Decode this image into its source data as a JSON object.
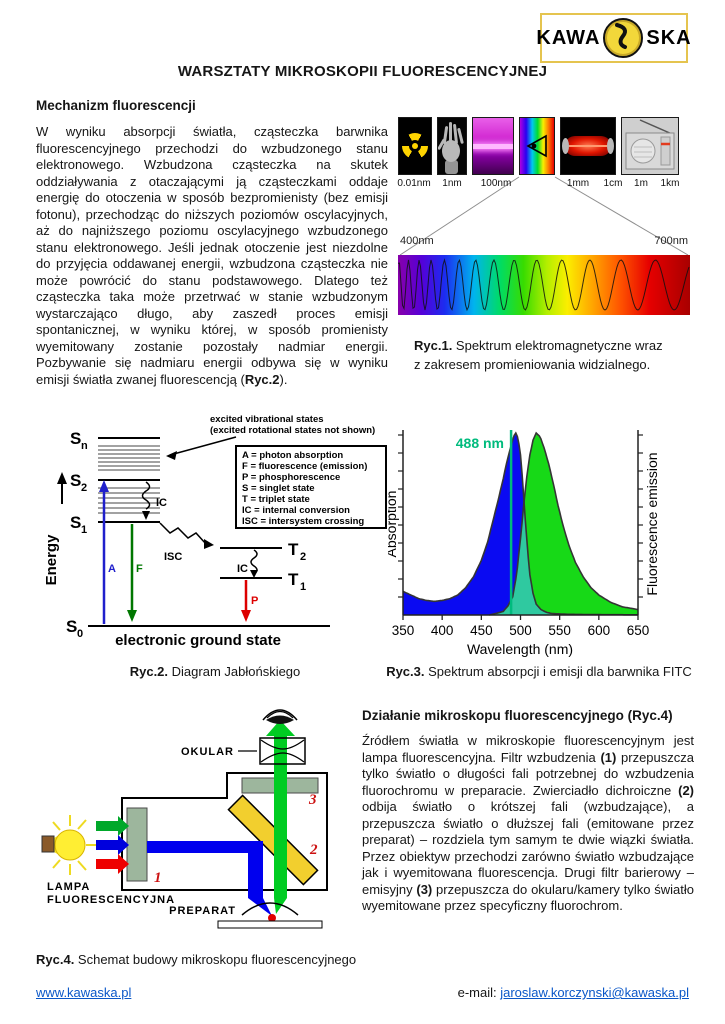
{
  "page_title": "WARSZTATY MIKROSKOPII FLUORESCENCYJNEJ",
  "logo": {
    "word_left": "KAWA",
    "word_right": "SKA"
  },
  "mechanizm": {
    "heading": "Mechanizm fluorescencji",
    "p1": "W wyniku absorpcji światła, cząsteczka barwnika fluorescencyjnego przechodzi do wzbudzonego stanu elektronowego. Wzbudzona cząsteczka na skutek oddziaływania z otaczającymi ją cząsteczkami oddaje energię do otoczenia w sposób bezpromienisty (bez emisji fotonu), przechodząc do niższych poziomów oscylacyjnych, aż do najniższego poziomu oscylacyjnego wzbudzonego stanu elektronowego. Jeśli jednak otoczenie jest niezdolne do przyjęcia oddawanej energii, wzbudzona cząsteczka nie może powrócić do stanu podstawowego. Dlatego też cząsteczka taka może przetrwać w stanie wzbudzonym wystarczająco długo, aby zaszedł proces emisji spontanicznej, w wyniku której, w sposób promienisty wyemitowany zostanie pozostały nadmiar energii. Pozbywanie się nadmiaru energii odbywa się w wyniku emisji światła zwanej fluorescencją (",
    "p1_bold": "Ryc.2",
    "p1_end": ")."
  },
  "ryc1": {
    "scale_labels": [
      "0.01nm",
      "1nm",
      "100nm",
      "1mm",
      "1cm",
      "1m",
      "1km"
    ],
    "scale_label_centers": [
      16,
      54,
      98,
      180,
      215,
      243,
      272
    ],
    "range_left": "400nm",
    "range_right": "700nm",
    "caption_bold": "Ryc.1.",
    "caption_line1": " Spektrum elektromagnetyczne wraz",
    "caption_line2": "z zakresem promieniowania widzialnego.",
    "icon_names": [
      "radioactive-icon",
      "xray-hand-icon",
      "uv-light-icon",
      "visible-eye-icon",
      "infrared-icon",
      "radio-icon"
    ]
  },
  "ryc2": {
    "annotation_line1": "excited vibrational states",
    "annotation_line2": "(excited rotational states not shown)",
    "legend": [
      "A = photon absorption",
      "F = fluorescence (emission)",
      "P = phosphorescence",
      "S = singlet state",
      "T = triplet state",
      "IC = internal conversion",
      "ISC = intersystem crossing"
    ],
    "energy_label": "Energy",
    "ground_label": "electronic ground state",
    "lv_sn": "S",
    "lv_sn_sub": "n",
    "lv_s2": "S",
    "lv_s2_sub": "2",
    "lv_s1": "S",
    "lv_s1_sub": "1",
    "lv_s0": "S",
    "lv_s0_sub": "0",
    "lv_t2": "T",
    "lv_t2_sub": "2",
    "lv_t1": "T",
    "lv_t1_sub": "1",
    "arrow_a": "A",
    "arrow_f": "F",
    "arrow_p": "P",
    "ic1": "IC",
    "ic2": "IC",
    "isc": "ISC",
    "caption_bold": "Ryc.2.",
    "caption_rest": " Diagram Jabłońskiego"
  },
  "chart_data": {
    "type": "area",
    "xlabel": "Wavelength (nm)",
    "ylabel_left": "Absorption",
    "ylabel_right": "Fluorescence emission",
    "xlim": [
      350,
      650
    ],
    "ylim": [
      0,
      1
    ],
    "x_ticks": [
      350,
      400,
      450,
      500,
      550,
      600,
      650
    ],
    "annotation": {
      "label": "488 nm",
      "x": 488
    },
    "colors": {
      "absorption": "#0a0af2",
      "emission": "#17d917",
      "overlap": "#2fc9a0",
      "annotation": "#00bb7d",
      "outline": "#353535"
    },
    "series": [
      {
        "name": "absorption",
        "x": [
          350,
          360,
          370,
          380,
          390,
          400,
          410,
          420,
          430,
          440,
          450,
          458,
          465,
          472,
          478,
          483,
          488,
          491,
          494,
          497,
          500,
          503,
          506,
          509,
          512,
          516,
          520,
          526,
          533,
          540,
          560,
          600,
          650
        ],
        "y": [
          0.13,
          0.11,
          0.09,
          0.08,
          0.075,
          0.08,
          0.09,
          0.11,
          0.15,
          0.21,
          0.3,
          0.4,
          0.52,
          0.64,
          0.75,
          0.85,
          0.93,
          0.98,
          1.0,
          0.97,
          0.88,
          0.72,
          0.53,
          0.36,
          0.22,
          0.12,
          0.06,
          0.03,
          0.015,
          0.008,
          0.004,
          0.002,
          0.001
        ]
      },
      {
        "name": "emission",
        "x": [
          460,
          470,
          478,
          484,
          490,
          495,
          500,
          504,
          508,
          512,
          516,
          520,
          525,
          530,
          536,
          542,
          548,
          555,
          562,
          570,
          580,
          590,
          600,
          615,
          630,
          650
        ],
        "y": [
          0.0,
          0.01,
          0.02,
          0.05,
          0.1,
          0.22,
          0.42,
          0.6,
          0.76,
          0.88,
          0.96,
          1.0,
          0.98,
          0.92,
          0.83,
          0.72,
          0.6,
          0.48,
          0.38,
          0.29,
          0.21,
          0.15,
          0.11,
          0.07,
          0.045,
          0.03
        ]
      }
    ]
  },
  "ryc3": {
    "caption_bold": "Ryc.3.",
    "caption_rest": " Spektrum absorpcji i emisji dla barwnika FITC"
  },
  "dzialanie": {
    "heading": "Działanie mikroskopu fluorescencyjnego (Ryc.4)",
    "seg1": "Źródłem światła w mikroskopie fluorescencyjnym jest lampa fluorescencyjna. Filtr wzbudzenia ",
    "b1": "(1)",
    "seg2": " przepuszcza tylko światło o długości fali potrzebnej do wzbudzenia fluorochromu w preparacie. Zwierciadło dichroiczne ",
    "b2": "(2)",
    "seg3": " odbija światło o krótszej fali (wzbudzające), a przepuszcza światło o dłuższej fali (emitowane przez preparat) – rozdziela tym samym te dwie wiązki światła. Przez obiektyw przechodzi zarówno światło wzbudzające jak i wyemitowana fluorescencja. Drugi filtr barierowy – emisyjny ",
    "b3": "(3)",
    "seg4": " przepuszcza do okularu/kamery tylko światło wyemitowane przez specyficzny fluorochrom."
  },
  "ryc4": {
    "okular": "OKULAR",
    "lampa_line1": "LAMPA",
    "lampa_line2": "FLUORESCENCYJNA",
    "preparat": "PREPARAT",
    "num1": "1",
    "num2": "2",
    "num3": "3",
    "caption_bold": "Ryc.4.",
    "caption_rest": " Schemat budowy mikroskopu fluorescencyjnego"
  },
  "footer": {
    "site": "www.kawaska.pl",
    "email_prefix": "e-mail: ",
    "email": "jaroslaw.korczynski@kawaska.pl"
  }
}
